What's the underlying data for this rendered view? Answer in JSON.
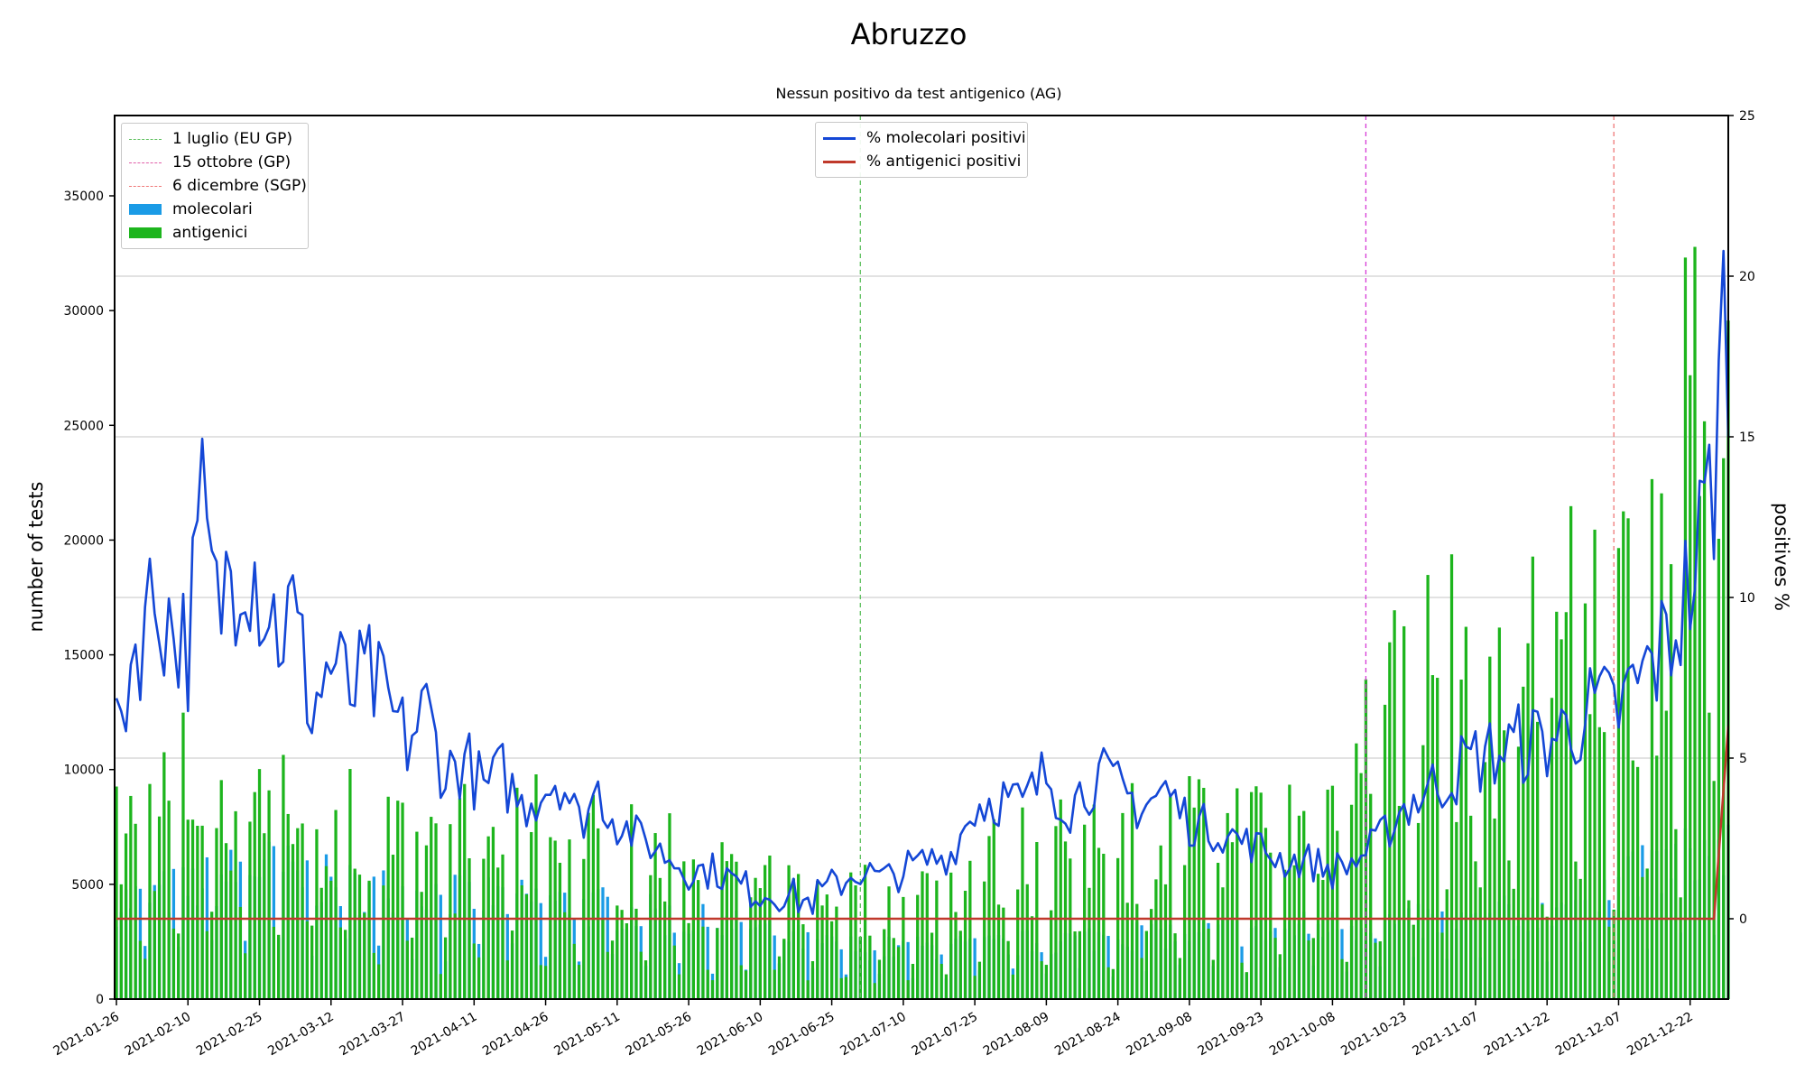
{
  "chart_data": {
    "type": "bar",
    "title": "Abruzzo",
    "subtitle": "Nessun positivo da test antigenico (AG)",
    "ylabel": "number of tests",
    "y2label": "positives %",
    "ylim": [
      0,
      38500
    ],
    "y2lim": [
      -2.5,
      25
    ],
    "yticks": [
      0,
      5000,
      10000,
      15000,
      20000,
      25000,
      30000,
      35000
    ],
    "y2ticks": [
      0,
      5,
      10,
      15,
      20,
      25
    ],
    "grid": "horizontal lines at right-axis ticks",
    "x_start": "2021-01-26",
    "x_end": "2021-12-30",
    "xticks": [
      "2021-01-26",
      "2021-02-10",
      "2021-02-25",
      "2021-03-12",
      "2021-03-27",
      "2021-04-11",
      "2021-04-26",
      "2021-05-11",
      "2021-05-26",
      "2021-06-10",
      "2021-06-25",
      "2021-07-10",
      "2021-07-25",
      "2021-08-09",
      "2021-08-24",
      "2021-09-08",
      "2021-09-23",
      "2021-10-08",
      "2021-10-23",
      "2021-11-07",
      "2021-11-22",
      "2021-12-07",
      "2021-12-22"
    ],
    "vlines": [
      {
        "date": "2021-07-01",
        "label": "1 luglio (EU GP)",
        "color": "#5cbf5c"
      },
      {
        "date": "2021-10-15",
        "label": "15 ottobre (GP)",
        "color": "#d63ad6"
      },
      {
        "date": "2021-12-06",
        "label": "6 dicembre (SGP)",
        "color": "#f07878"
      }
    ],
    "series": [
      {
        "name": "molecolari",
        "kind": "bar",
        "axis": "left",
        "color": "#1a9be6",
        "anchors": [
          [
            "2021-01-26",
            4200
          ],
          [
            "2021-02-10",
            4800
          ],
          [
            "2021-02-25",
            5800
          ],
          [
            "2021-03-12",
            5000
          ],
          [
            "2021-03-27",
            4600
          ],
          [
            "2021-04-11",
            4500
          ],
          [
            "2021-04-26",
            4200
          ],
          [
            "2021-05-11",
            3900
          ],
          [
            "2021-05-26",
            3400
          ],
          [
            "2021-06-10",
            3000
          ],
          [
            "2021-06-25",
            2300
          ],
          [
            "2021-07-10",
            2200
          ],
          [
            "2021-07-25",
            2300
          ],
          [
            "2021-08-09",
            2500
          ],
          [
            "2021-08-24",
            2800
          ],
          [
            "2021-09-08",
            2900
          ],
          [
            "2021-09-23",
            3000
          ],
          [
            "2021-10-08",
            3200
          ],
          [
            "2021-10-23",
            3300
          ],
          [
            "2021-11-07",
            3400
          ],
          [
            "2021-11-22",
            4000
          ],
          [
            "2021-12-07",
            5000
          ],
          [
            "2021-12-22",
            6200
          ],
          [
            "2021-12-30",
            6500
          ]
        ]
      },
      {
        "name": "antigenici",
        "kind": "bar",
        "axis": "left",
        "color": "#1db51d",
        "anchors": [
          [
            "2021-01-26",
            6500
          ],
          [
            "2021-02-10",
            9000
          ],
          [
            "2021-02-25",
            9500
          ],
          [
            "2021-03-12",
            7500
          ],
          [
            "2021-03-27",
            6000
          ],
          [
            "2021-04-11",
            6500
          ],
          [
            "2021-04-26",
            6800
          ],
          [
            "2021-05-11",
            6000
          ],
          [
            "2021-05-26",
            5300
          ],
          [
            "2021-06-10",
            4200
          ],
          [
            "2021-06-25",
            4200
          ],
          [
            "2021-07-10",
            4000
          ],
          [
            "2021-07-25",
            5200
          ],
          [
            "2021-08-09",
            6500
          ],
          [
            "2021-08-24",
            7000
          ],
          [
            "2021-09-08",
            7000
          ],
          [
            "2021-09-23",
            6800
          ],
          [
            "2021-10-08",
            8000
          ],
          [
            "2021-10-23",
            13000
          ],
          [
            "2021-11-07",
            13500
          ],
          [
            "2021-11-22",
            14500
          ],
          [
            "2021-12-07",
            15500
          ],
          [
            "2021-12-22",
            22000
          ],
          [
            "2021-12-30",
            34000
          ]
        ]
      },
      {
        "name": "% molecolari positivi",
        "kind": "line",
        "axis": "right",
        "color": "#1447d6",
        "anchors": [
          [
            "2021-01-26",
            5.5
          ],
          [
            "2021-01-29",
            8.0
          ],
          [
            "2021-02-01",
            9.5
          ],
          [
            "2021-02-04",
            10.0
          ],
          [
            "2021-02-07",
            9.0
          ],
          [
            "2021-02-10",
            8.5
          ],
          [
            "2021-02-13",
            12.5
          ],
          [
            "2021-02-16",
            9.5
          ],
          [
            "2021-02-19",
            11.0
          ],
          [
            "2021-02-22",
            12.0
          ],
          [
            "2021-02-25",
            10.5
          ],
          [
            "2021-03-01",
            9.0
          ],
          [
            "2021-03-04",
            9.5
          ],
          [
            "2021-03-08",
            6.5
          ],
          [
            "2021-03-12",
            8.0
          ],
          [
            "2021-03-16",
            7.0
          ],
          [
            "2021-03-20",
            7.5
          ],
          [
            "2021-03-24",
            6.5
          ],
          [
            "2021-03-28",
            5.5
          ],
          [
            "2021-04-01",
            6.5
          ],
          [
            "2021-04-05",
            4.5
          ],
          [
            "2021-04-09",
            5.0
          ],
          [
            "2021-04-13",
            4.0
          ],
          [
            "2021-04-17",
            4.5
          ],
          [
            "2021-04-21",
            3.5
          ],
          [
            "2021-04-25",
            4.0
          ],
          [
            "2021-04-29",
            4.5
          ],
          [
            "2021-05-03",
            3.0
          ],
          [
            "2021-05-07",
            4.0
          ],
          [
            "2021-05-11",
            3.0
          ],
          [
            "2021-05-16",
            2.5
          ],
          [
            "2021-05-21",
            2.0
          ],
          [
            "2021-05-26",
            1.5
          ],
          [
            "2021-06-01",
            1.5
          ],
          [
            "2021-06-06",
            1.0
          ],
          [
            "2021-06-10",
            0.8
          ],
          [
            "2021-06-15",
            0.8
          ],
          [
            "2021-06-20",
            0.5
          ],
          [
            "2021-06-25",
            1.0
          ],
          [
            "2021-07-01",
            1.5
          ],
          [
            "2021-07-06",
            1.2
          ],
          [
            "2021-07-10",
            1.5
          ],
          [
            "2021-07-15",
            1.8
          ],
          [
            "2021-07-20",
            2.0
          ],
          [
            "2021-07-25",
            3.5
          ],
          [
            "2021-07-30",
            3.8
          ],
          [
            "2021-08-04",
            3.5
          ],
          [
            "2021-08-09",
            4.5
          ],
          [
            "2021-08-14",
            3.5
          ],
          [
            "2021-08-19",
            4.5
          ],
          [
            "2021-08-24",
            4.0
          ],
          [
            "2021-08-29",
            3.5
          ],
          [
            "2021-09-03",
            4.0
          ],
          [
            "2021-09-08",
            3.0
          ],
          [
            "2021-09-13",
            2.8
          ],
          [
            "2021-09-18",
            2.5
          ],
          [
            "2021-09-23",
            2.2
          ],
          [
            "2021-09-28",
            1.8
          ],
          [
            "2021-10-03",
            1.8
          ],
          [
            "2021-10-08",
            1.5
          ],
          [
            "2021-10-13",
            1.8
          ],
          [
            "2021-10-18",
            2.5
          ],
          [
            "2021-10-23",
            3.5
          ],
          [
            "2021-10-28",
            4.0
          ],
          [
            "2021-11-02",
            4.5
          ],
          [
            "2021-11-07",
            5.0
          ],
          [
            "2021-11-12",
            5.2
          ],
          [
            "2021-11-17",
            5.5
          ],
          [
            "2021-11-22",
            5.5
          ],
          [
            "2021-11-27",
            6.0
          ],
          [
            "2021-12-02",
            6.5
          ],
          [
            "2021-12-07",
            6.5
          ],
          [
            "2021-12-12",
            7.5
          ],
          [
            "2021-12-17",
            8.5
          ],
          [
            "2021-12-21",
            10.0
          ],
          [
            "2021-12-24",
            11.5
          ],
          [
            "2021-12-27",
            14.0
          ],
          [
            "2021-12-30",
            20.0
          ]
        ]
      },
      {
        "name": "% antigenici positivi",
        "kind": "line",
        "axis": "right",
        "color": "#c0392b",
        "anchors": [
          [
            "2021-01-26",
            0
          ],
          [
            "2021-12-27",
            0
          ],
          [
            "2021-12-30",
            6.0
          ]
        ]
      }
    ]
  }
}
